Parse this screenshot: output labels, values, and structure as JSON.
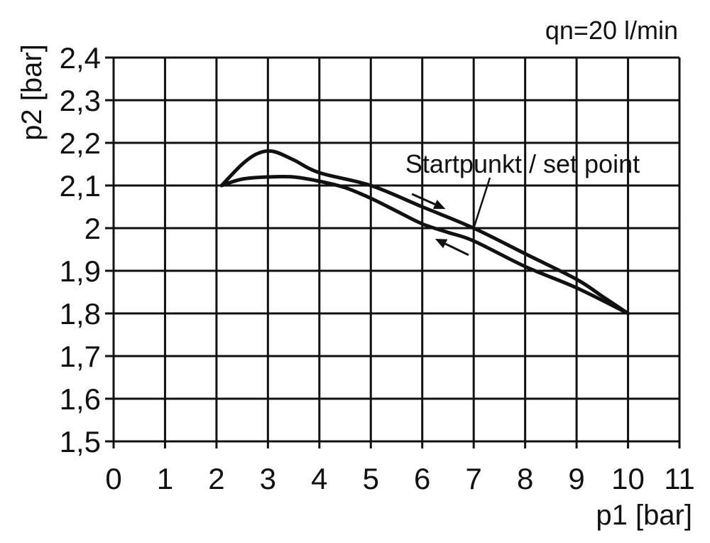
{
  "chart_data": {
    "type": "line",
    "title": "",
    "condition": "qn=20 l/min",
    "xlabel": "p1 [bar]",
    "ylabel": "p2 [bar]",
    "xlim": [
      0,
      11
    ],
    "ylim": [
      1.5,
      2.4
    ],
    "grid": true,
    "x_ticks": [
      "0",
      "1",
      "2",
      "3",
      "4",
      "5",
      "6",
      "7",
      "8",
      "9",
      "10",
      "11"
    ],
    "y_ticks": [
      "1,5",
      "1,6",
      "1,7",
      "1,8",
      "1,9",
      "2",
      "2,1",
      "2,2",
      "2,3",
      "2,4"
    ],
    "annotation": "Startpunkt / set point",
    "annotation_point": {
      "x": 7,
      "y": 2.0
    },
    "series": [
      {
        "values": [
          [
            2.1,
            2.1
          ],
          [
            2.5,
            2.15
          ],
          [
            2.8,
            2.175
          ],
          [
            3.1,
            2.18
          ],
          [
            3.5,
            2.16
          ],
          [
            4,
            2.13
          ],
          [
            5,
            2.1
          ],
          [
            6,
            2.05
          ],
          [
            7,
            2.0
          ],
          [
            8,
            1.94
          ],
          [
            9,
            1.88
          ],
          [
            9.5,
            1.84
          ],
          [
            10,
            1.8
          ]
        ]
      },
      {
        "values": [
          [
            2.1,
            2.1
          ],
          [
            2.5,
            2.115
          ],
          [
            3,
            2.12
          ],
          [
            3.5,
            2.12
          ],
          [
            4,
            2.11
          ],
          [
            4.5,
            2.095
          ],
          [
            5,
            2.07
          ],
          [
            5.5,
            2.04
          ],
          [
            6,
            2.01
          ],
          [
            6.5,
            1.99
          ],
          [
            7,
            1.97
          ],
          [
            8,
            1.91
          ],
          [
            9,
            1.86
          ],
          [
            10,
            1.8
          ]
        ]
      }
    ],
    "arrows": [
      {
        "direction": "increasing",
        "from": {
          "x": 5.8,
          "y": 2.08
        },
        "to": {
          "x": 6.45,
          "y": 2.045
        }
      },
      {
        "direction": "decreasing",
        "from": {
          "x": 6.9,
          "y": 1.937
        },
        "to": {
          "x": 6.25,
          "y": 1.975
        }
      }
    ]
  }
}
